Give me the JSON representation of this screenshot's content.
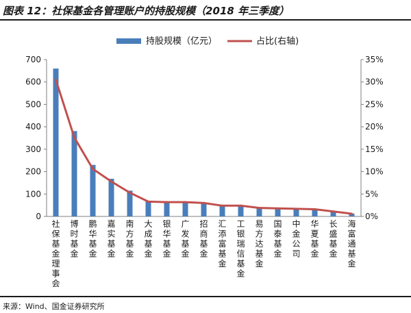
{
  "title": "图表 12：社保基金各管理账户的持股规模（2018 年三季度）",
  "source": "来源：Wind、国金证券研究所",
  "colors": {
    "bar": "#4a7ebb",
    "line": "#c0504d"
  },
  "chart_data": {
    "type": "bar",
    "categories": [
      "社保基金理事会",
      "博时基金",
      "鹏华基金",
      "嘉实基金",
      "南方基金",
      "大成基金",
      "银华基金",
      "广发基金",
      "招商基金",
      "汇添富基金",
      "工银瑞信基金",
      "易方达基金",
      "国泰基金",
      "中金公司",
      "华夏基金",
      "长盛基金",
      "海富通基金"
    ],
    "series": [
      {
        "name": "持股规模（亿元）",
        "axis": "left",
        "kind": "bar",
        "values": [
          660,
          381,
          230,
          168,
          115,
          67,
          64,
          63,
          60,
          48,
          47,
          38,
          36,
          34,
          32,
          24,
          13
        ]
      },
      {
        "name": "占比(右轴)",
        "axis": "right",
        "kind": "line",
        "values": [
          30.5,
          17.6,
          10.6,
          7.8,
          5.3,
          3.3,
          3.2,
          3.2,
          3.0,
          2.4,
          2.4,
          1.9,
          1.8,
          1.7,
          1.6,
          1.1,
          0.6
        ]
      }
    ],
    "y_left": {
      "ylim": [
        0,
        700
      ],
      "ticks": [
        "0",
        "100",
        "200",
        "300",
        "400",
        "500",
        "600",
        "700"
      ]
    },
    "y_right": {
      "ylim": [
        0,
        35
      ],
      "ticks": [
        "0%",
        "5%",
        "10%",
        "15%",
        "20%",
        "25%",
        "30%",
        "35%"
      ]
    },
    "legend_position": "top-center"
  }
}
